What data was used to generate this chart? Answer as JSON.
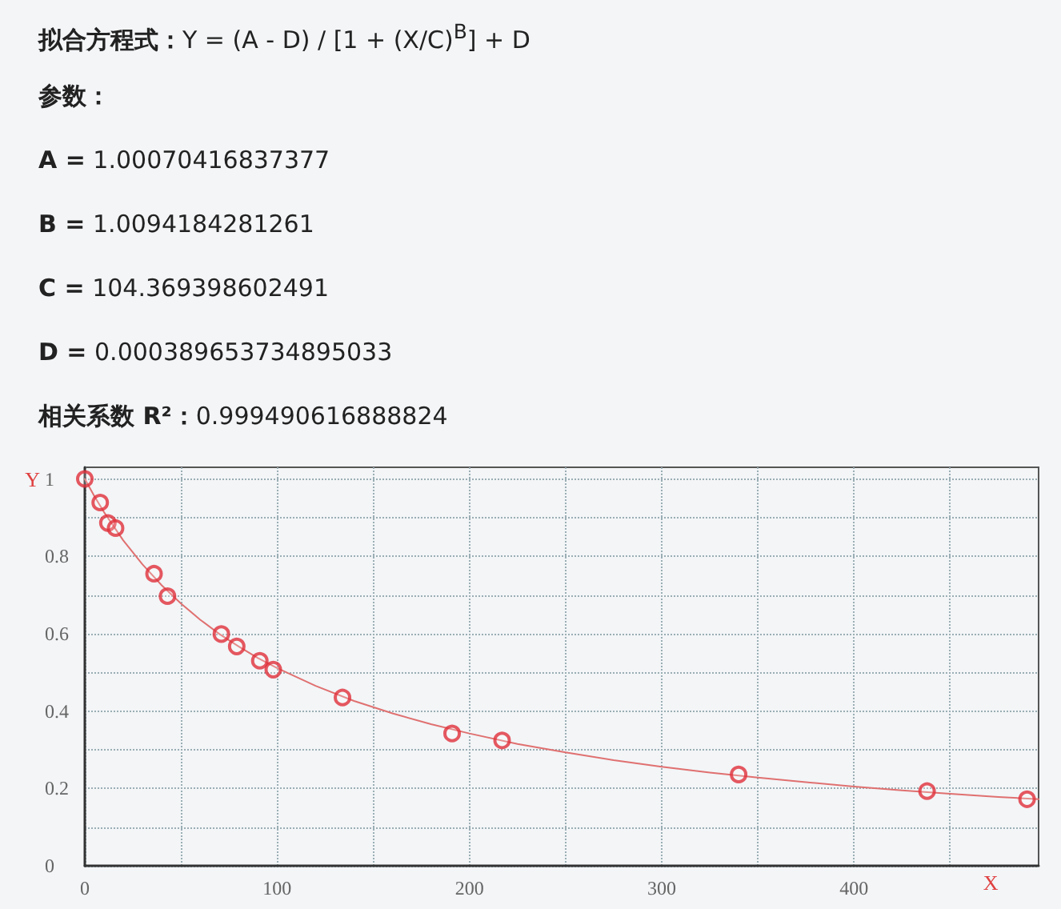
{
  "chart_data": {
    "type": "scatter",
    "annotations": [
      "拟合方程式：Y = (A - D) / [1 + (X/C)$^{B}$] + D",
      "参数：",
      "A = 1.00070416837377",
      "B = 1.0094184281261",
      "C = 104.369398602491",
      "D = 0.000389653734895033",
      "相关系数 R²：0.999490616888824"
    ],
    "xlabel": "X",
    "ylabel": "Y",
    "xlim": [
      0,
      496
    ],
    "xticks": [
      0,
      {
        "value": 50,
        "label": null
      },
      100,
      {
        "value": 150,
        "label": null
      },
      200,
      {
        "value": 250,
        "label": null
      },
      300,
      {
        "value": 350,
        "label": null
      },
      400,
      {
        "value": 450,
        "label": null
      }
    ],
    "ylim": [
      0,
      1.03
    ],
    "yticks": [
      0,
      {
        "value": 0.1,
        "label": null
      },
      0.2,
      {
        "value": 0.3,
        "label": null
      },
      0.4,
      {
        "value": 0.5,
        "label": null
      },
      0.6,
      {
        "value": 0.7,
        "label": null
      },
      0.8,
      {
        "value": 0.9,
        "label": null
      },
      1
    ],
    "grid": true,
    "marker": "circle",
    "series": [
      {
        "type": "scatter",
        "color": "#e0303a",
        "x": [
          0,
          8,
          12,
          16,
          36,
          43,
          71,
          79,
          91,
          98,
          134,
          191,
          217,
          340,
          438,
          490
        ],
        "values": [
          1.0,
          0.939,
          0.886,
          0.873,
          0.755,
          0.697,
          0.599,
          0.567,
          0.53,
          0.507,
          0.435,
          0.342,
          0.324,
          0.236,
          0.193,
          0.172
        ]
      },
      {
        "type": "line",
        "color": "#e07070",
        "marker": "none",
        "line_style": "solid",
        "x": [
          0,
          5,
          10,
          20,
          30,
          40,
          50,
          60,
          70,
          80,
          90,
          100,
          120,
          140,
          160,
          180,
          200,
          225,
          250,
          275,
          300,
          325,
          350,
          375,
          400,
          425,
          450,
          475,
          496
        ],
        "values": [
          1.0,
          0.955,
          0.914,
          0.841,
          0.779,
          0.725,
          0.678,
          0.636,
          0.599,
          0.567,
          0.537,
          0.511,
          0.465,
          0.426,
          0.394,
          0.366,
          0.342,
          0.315,
          0.293,
          0.273,
          0.256,
          0.241,
          0.228,
          0.216,
          0.205,
          0.195,
          0.186,
          0.178,
          0.172
        ]
      }
    ]
  }
}
